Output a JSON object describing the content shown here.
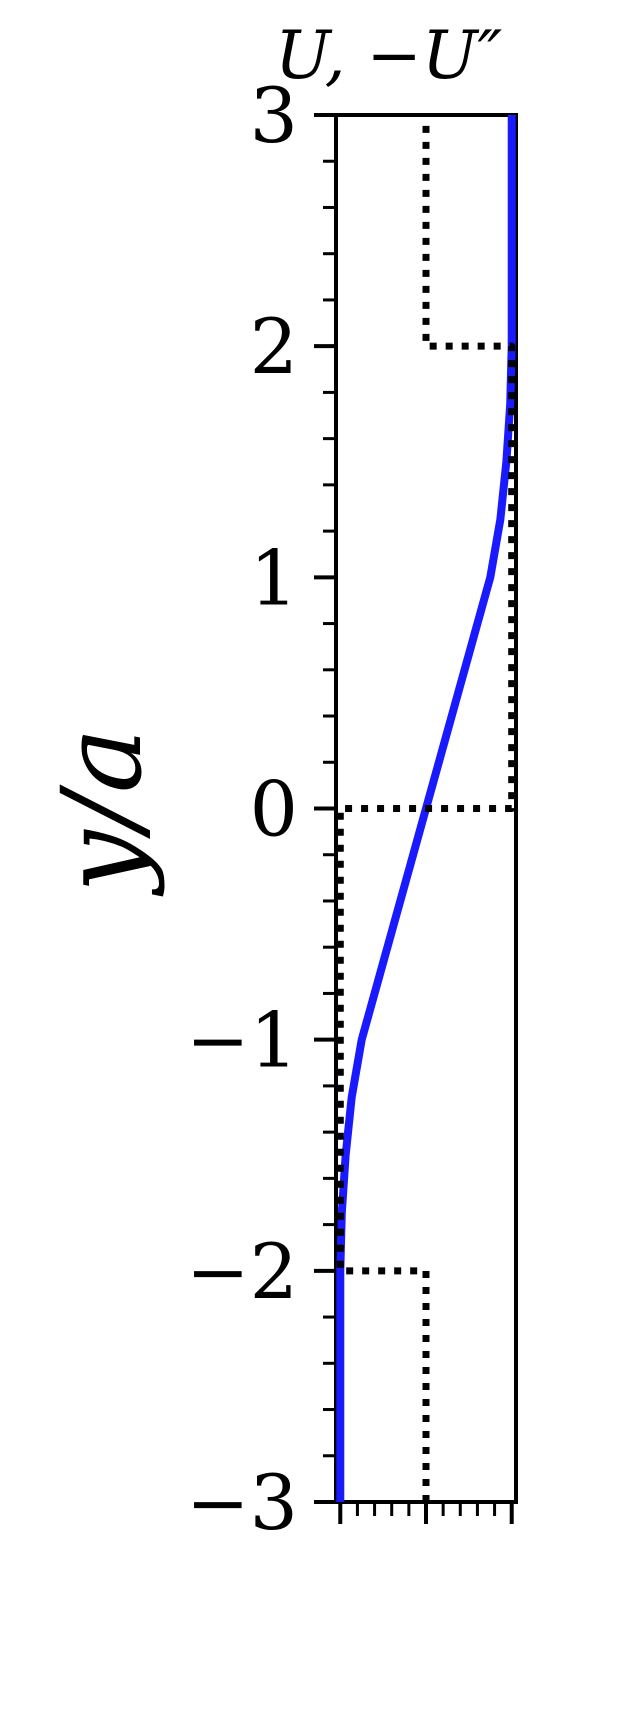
{
  "chart_data": {
    "type": "line",
    "title": "U, −U″",
    "xlabel": "",
    "ylabel": "y/a",
    "xlim": [
      -1.05,
      1.05
    ],
    "ylim": [
      -3,
      3
    ],
    "y_ticks": [
      -3,
      -2,
      -1,
      0,
      1,
      2,
      3
    ],
    "y_tick_labels": [
      "−3",
      "−2",
      "−1",
      "0",
      "1",
      "2",
      "3"
    ],
    "y_minor_step": 0.2,
    "x_minor_ticks": [
      -1,
      -0.8,
      -0.6,
      -0.4,
      -0.2,
      0,
      0.2,
      0.4,
      0.6,
      0.8,
      1
    ],
    "grid": false,
    "series": [
      {
        "style": "solid",
        "color": "#1a1aff",
        "y": [
          -3,
          -2,
          -1.75,
          -1.5,
          -1.25,
          -1,
          -0.75,
          -0.5,
          -0.25,
          0,
          0.25,
          0.5,
          0.75,
          1,
          1.25,
          1.5,
          1.75,
          2,
          3
        ],
        "x": [
          -1,
          -1,
          -0.9825,
          -0.9375,
          -0.8672,
          -0.75,
          -0.5625,
          -0.375,
          -0.1875,
          0,
          0.1875,
          0.375,
          0.5625,
          0.75,
          0.8672,
          0.9375,
          0.9825,
          1,
          1
        ]
      },
      {
        "style": "dotted",
        "color": "#000000",
        "y": [
          -3,
          -2,
          -2,
          0,
          0,
          2,
          2,
          3
        ],
        "x": [
          0,
          0,
          -1,
          -1,
          1,
          1,
          0,
          0
        ]
      }
    ]
  }
}
